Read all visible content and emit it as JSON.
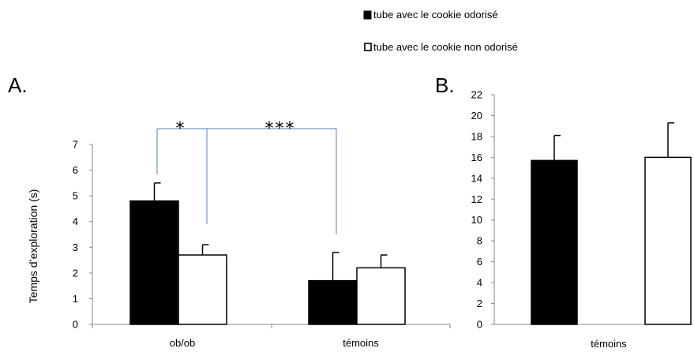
{
  "legend": {
    "items": [
      {
        "label": "tube avec le cookie odorisé",
        "swatch_color": "#000000"
      },
      {
        "label": "tube avec le cookie non odorisé",
        "swatch_color": "#ffffff"
      }
    ]
  },
  "colors": {
    "odorise": "#000000",
    "non_odorise": "#ffffff",
    "bracket": "#4f81bd"
  },
  "chart_data": [
    {
      "panel_label": "A.",
      "type": "bar",
      "ylabel": "Temps d’exploration (s)",
      "ylim": [
        0,
        7
      ],
      "yticks": [
        0,
        1,
        2,
        3,
        4,
        5,
        6,
        7
      ],
      "categories": [
        "ob/ob",
        "témoins"
      ],
      "series": [
        {
          "name": "tube avec le cookie odorisé",
          "values": [
            4.8,
            1.7
          ],
          "errors": [
            0.7,
            1.1
          ]
        },
        {
          "name": "tube avec le cookie non odorisé",
          "values": [
            2.7,
            2.2
          ],
          "errors": [
            0.4,
            0.5
          ]
        }
      ],
      "annotations": [
        {
          "text": "*",
          "compares": "ob/ob odorisé vs ob/ob non odorisé"
        },
        {
          "text": "***",
          "compares": "ob/ob vs témoins"
        }
      ]
    },
    {
      "panel_label": "B.",
      "type": "bar",
      "ylabel": "",
      "ylim": [
        0,
        22
      ],
      "yticks": [
        0,
        2,
        4,
        6,
        8,
        10,
        12,
        14,
        16,
        18,
        20,
        22
      ],
      "categories": [
        "témoins"
      ],
      "series": [
        {
          "name": "tube avec le cookie odorisé",
          "values": [
            15.7
          ],
          "errors": [
            2.4
          ]
        },
        {
          "name": "tube avec le cookie non odorisé",
          "values": [
            16.0
          ],
          "errors": [
            3.3
          ]
        }
      ]
    }
  ]
}
